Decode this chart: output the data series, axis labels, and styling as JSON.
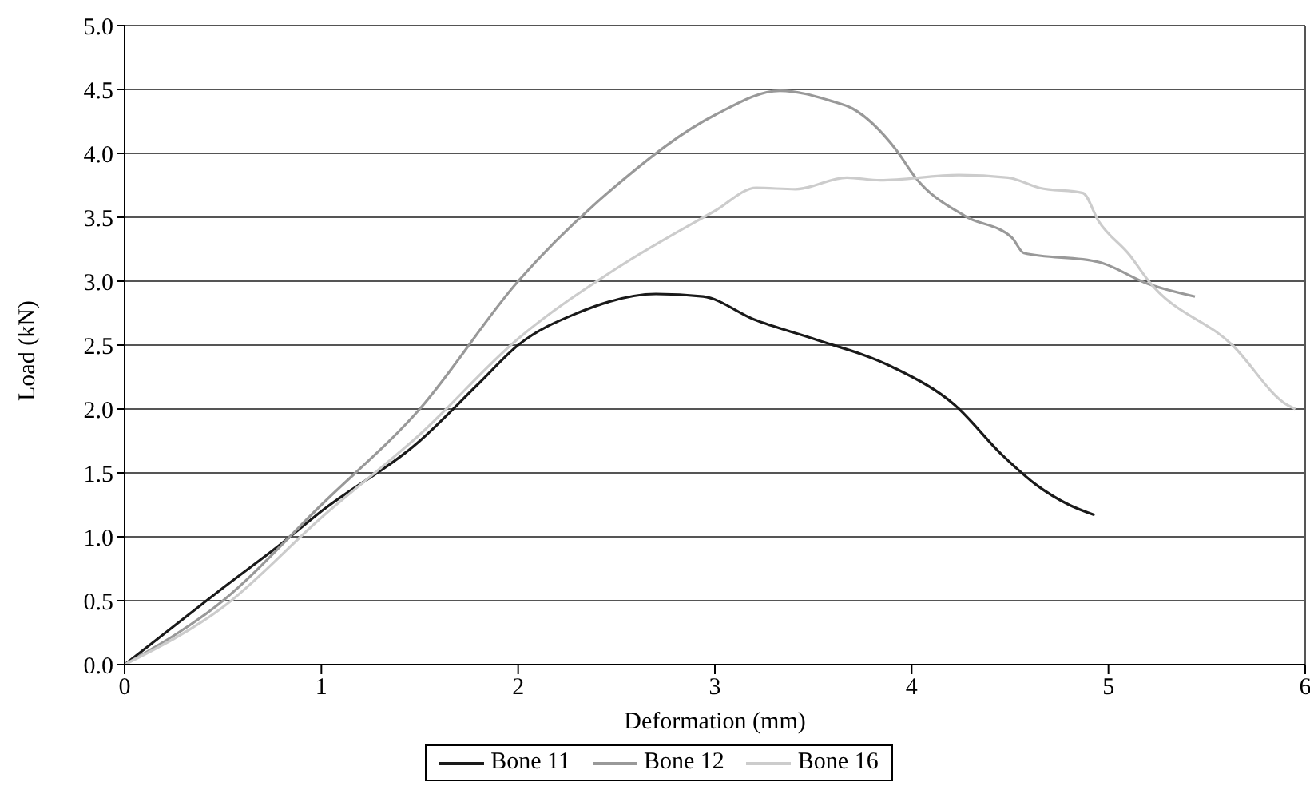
{
  "chart_data": {
    "type": "line",
    "xlabel": "Deformation (mm)",
    "ylabel": "Load (kN)",
    "xlim": [
      0,
      6
    ],
    "xticks": [
      0,
      1,
      2,
      3,
      4,
      5,
      6
    ],
    "ylim": [
      0,
      5
    ],
    "yticks": [
      {
        "value": 0,
        "label": "0.0"
      },
      {
        "value": 0.5,
        "label": "0.5"
      },
      {
        "value": 1,
        "label": "1.0"
      },
      {
        "value": 1.5,
        "label": "1.5"
      },
      {
        "value": 2,
        "label": "2.0"
      },
      {
        "value": 2.5,
        "label": "2.5"
      },
      {
        "value": 3,
        "label": "3.0"
      },
      {
        "value": 3.5,
        "label": "3.5"
      },
      {
        "value": 4,
        "label": "4.0"
      },
      {
        "value": 4.5,
        "label": "4.5"
      },
      {
        "value": 5,
        "label": "5.0"
      }
    ],
    "grid": "y",
    "legend": "bottom",
    "marker": "none",
    "line_style": "solid",
    "series": [
      {
        "name": "Bone 11",
        "color": "#1a1a1a",
        "x": [
          0,
          0.25,
          0.5,
          0.8,
          1.0,
          1.5,
          1.8,
          2.0,
          2.3,
          2.7,
          2.94,
          3.2,
          3.5,
          3.9,
          4.22,
          4.46,
          4.63,
          4.8,
          4.93
        ],
        "values": [
          0,
          0.3,
          0.6,
          0.95,
          1.2,
          1.75,
          2.2,
          2.5,
          2.75,
          2.9,
          2.88,
          2.7,
          2.55,
          2.33,
          2.03,
          1.64,
          1.41,
          1.25,
          1.17
        ]
      },
      {
        "name": "Bone 12",
        "color": "#999999",
        "x": [
          0,
          0.5,
          1,
          1.5,
          2,
          2.5,
          3.0,
          3.33,
          3.59,
          3.7,
          3.92,
          4.02,
          4.27,
          4.51,
          4.57,
          4.95,
          5.2,
          5.44
        ],
        "values": [
          0,
          0.5,
          1.25,
          2.0,
          3.0,
          3.75,
          4.3,
          4.49,
          4.41,
          4.35,
          4.03,
          3.81,
          3.51,
          3.34,
          3.22,
          3.15,
          2.98,
          2.88
        ]
      },
      {
        "name": "Bone 16",
        "color": "#cccccc",
        "x": [
          0,
          0.5,
          1,
          1.5,
          2,
          2.5,
          3.0,
          3.21,
          3.41,
          3.67,
          3.84,
          4.24,
          4.49,
          4.65,
          4.87,
          4.95,
          5.11,
          5.2,
          5.63,
          5.91,
          5.95
        ],
        "values": [
          0,
          0.45,
          1.15,
          1.8,
          2.55,
          3.1,
          3.55,
          3.73,
          3.72,
          3.81,
          3.79,
          3.83,
          3.81,
          3.73,
          3.69,
          3.47,
          3.2,
          3.01,
          2.5,
          2.03,
          2.0
        ]
      }
    ]
  }
}
